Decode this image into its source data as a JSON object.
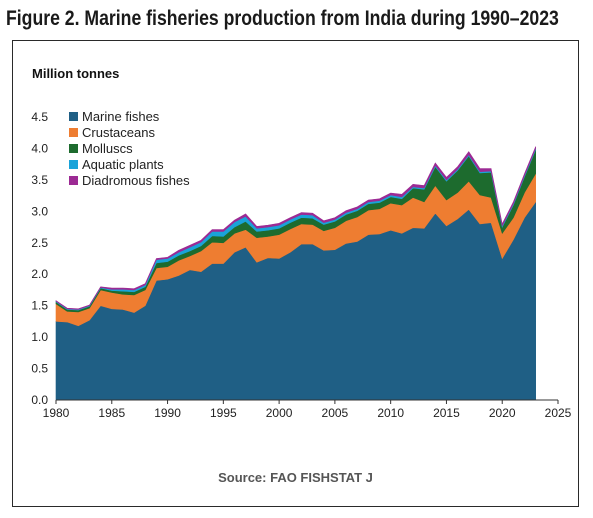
{
  "figure": {
    "title": "Figure 2. Marine fisheries production from India during 1990–2023",
    "source": "Source: FAO FISHSTAT J"
  },
  "chart_data": {
    "type": "area",
    "stacked": true,
    "ylabel": "Million tonnes",
    "xlabel": "",
    "xlim": [
      1980,
      2025
    ],
    "ylim": [
      0,
      4.5
    ],
    "x_ticks": [
      1980,
      1985,
      1990,
      1995,
      2000,
      2005,
      2010,
      2015,
      2020,
      2025
    ],
    "y_ticks": [
      0.0,
      0.5,
      1.0,
      1.5,
      2.0,
      2.5,
      3.0,
      3.5,
      4.0,
      4.5
    ],
    "grid": false,
    "legend_position": "top-left",
    "x": [
      1980,
      1981,
      1982,
      1983,
      1984,
      1985,
      1986,
      1987,
      1988,
      1989,
      1990,
      1991,
      1992,
      1993,
      1994,
      1995,
      1996,
      1997,
      1998,
      1999,
      2000,
      2001,
      2002,
      2003,
      2004,
      2005,
      2006,
      2007,
      2008,
      2009,
      2010,
      2011,
      2012,
      2013,
      2014,
      2015,
      2016,
      2017,
      2018,
      2019,
      2020,
      2021,
      2022,
      2023
    ],
    "series": [
      {
        "name": "Marine fishes",
        "color": "#1f5f85",
        "values": [
          1.25,
          1.24,
          1.18,
          1.27,
          1.5,
          1.45,
          1.44,
          1.39,
          1.5,
          1.9,
          1.92,
          1.98,
          2.07,
          2.04,
          2.17,
          2.17,
          2.35,
          2.43,
          2.19,
          2.26,
          2.25,
          2.35,
          2.48,
          2.48,
          2.38,
          2.39,
          2.49,
          2.52,
          2.63,
          2.64,
          2.7,
          2.65,
          2.74,
          2.73,
          2.97,
          2.77,
          2.88,
          3.03,
          2.8,
          2.82,
          2.25,
          2.55,
          2.9,
          3.15
        ]
      },
      {
        "name": "Crustaceans",
        "color": "#ee7d31",
        "values": [
          0.28,
          0.17,
          0.22,
          0.19,
          0.25,
          0.26,
          0.24,
          0.28,
          0.25,
          0.2,
          0.2,
          0.24,
          0.22,
          0.33,
          0.34,
          0.33,
          0.3,
          0.28,
          0.39,
          0.34,
          0.38,
          0.37,
          0.32,
          0.31,
          0.31,
          0.35,
          0.36,
          0.39,
          0.39,
          0.4,
          0.43,
          0.45,
          0.48,
          0.42,
          0.44,
          0.41,
          0.42,
          0.45,
          0.46,
          0.4,
          0.4,
          0.35,
          0.4,
          0.45
        ]
      },
      {
        "name": "Molluscs",
        "color": "#1d6b2e",
        "values": [
          0.03,
          0.03,
          0.03,
          0.03,
          0.03,
          0.03,
          0.05,
          0.05,
          0.05,
          0.08,
          0.08,
          0.08,
          0.08,
          0.08,
          0.1,
          0.1,
          0.1,
          0.13,
          0.1,
          0.1,
          0.1,
          0.1,
          0.1,
          0.1,
          0.1,
          0.1,
          0.1,
          0.1,
          0.1,
          0.1,
          0.1,
          0.1,
          0.15,
          0.2,
          0.3,
          0.3,
          0.35,
          0.4,
          0.35,
          0.4,
          0.1,
          0.2,
          0.25,
          0.38
        ]
      },
      {
        "name": "Aquatic plants",
        "color": "#1aa3d9",
        "values": [
          0.01,
          0.01,
          0.01,
          0.01,
          0.01,
          0.02,
          0.03,
          0.03,
          0.03,
          0.05,
          0.05,
          0.05,
          0.06,
          0.06,
          0.07,
          0.08,
          0.08,
          0.08,
          0.05,
          0.05,
          0.05,
          0.05,
          0.05,
          0.05,
          0.03,
          0.03,
          0.03,
          0.03,
          0.03,
          0.03,
          0.03,
          0.03,
          0.02,
          0.02,
          0.02,
          0.02,
          0.02,
          0.02,
          0.02,
          0.02,
          0.02,
          0.02,
          0.02,
          0.02
        ]
      },
      {
        "name": "Diadromous fishes",
        "color": "#9c2a94",
        "values": [
          0.01,
          0.01,
          0.01,
          0.01,
          0.01,
          0.02,
          0.02,
          0.02,
          0.02,
          0.02,
          0.02,
          0.03,
          0.03,
          0.03,
          0.03,
          0.03,
          0.03,
          0.04,
          0.03,
          0.03,
          0.03,
          0.03,
          0.03,
          0.03,
          0.03,
          0.03,
          0.03,
          0.03,
          0.03,
          0.03,
          0.03,
          0.04,
          0.04,
          0.04,
          0.04,
          0.04,
          0.04,
          0.05,
          0.05,
          0.04,
          0.03,
          0.03,
          0.03,
          0.03
        ]
      }
    ]
  }
}
